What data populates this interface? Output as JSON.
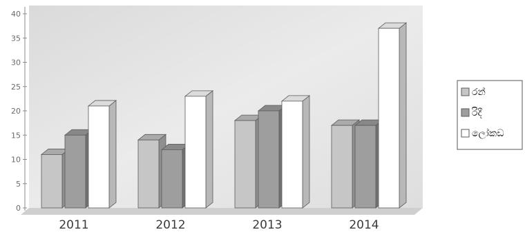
{
  "chart_data": {
    "type": "bar",
    "categories": [
      "2011",
      "2012",
      "2013",
      "2014"
    ],
    "series": [
      {
        "name": "රන්",
        "values": [
          11,
          14,
          18,
          17
        ]
      },
      {
        "name": "රිදී",
        "values": [
          15,
          12,
          20,
          17
        ]
      },
      {
        "name": "ලෝකඩ",
        "values": [
          21,
          23,
          22,
          37
        ]
      }
    ],
    "y_ticks": [
      "0",
      "5",
      "10",
      "15",
      "20",
      "25",
      "30",
      "35",
      "40"
    ],
    "ylim": [
      0,
      40
    ],
    "grid": false,
    "legend_position": "right",
    "colors": {
      "series": [
        "#c6c6c6",
        "#9e9e9e",
        "#ffffff"
      ],
      "background": "#e2e2e2",
      "outline": "#5a5a5a"
    }
  }
}
